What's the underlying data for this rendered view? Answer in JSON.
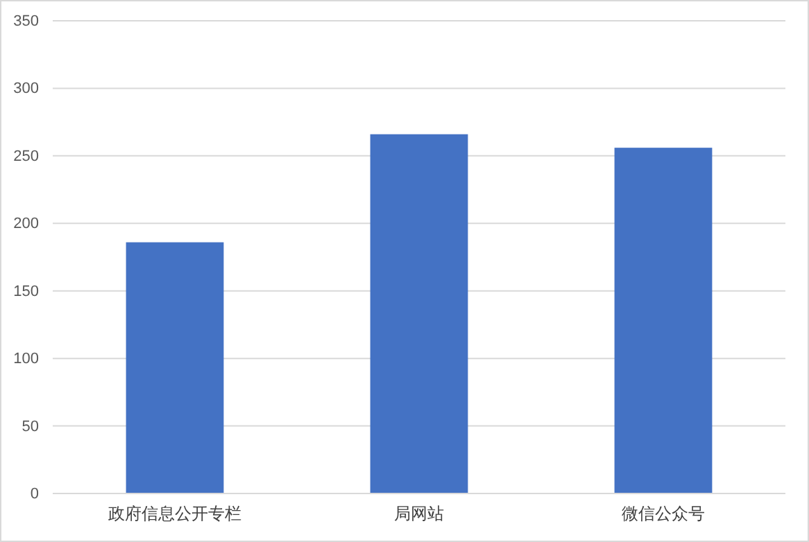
{
  "chart_data": {
    "type": "bar",
    "categories": [
      "政府信息公开专栏",
      "局网站",
      "微信公众号"
    ],
    "values": [
      186,
      266,
      256
    ],
    "color": "#4472c4",
    "ylim": [
      0,
      350
    ],
    "yticks": [
      0,
      50,
      100,
      150,
      200,
      250,
      300,
      350
    ],
    "grid": "y"
  }
}
